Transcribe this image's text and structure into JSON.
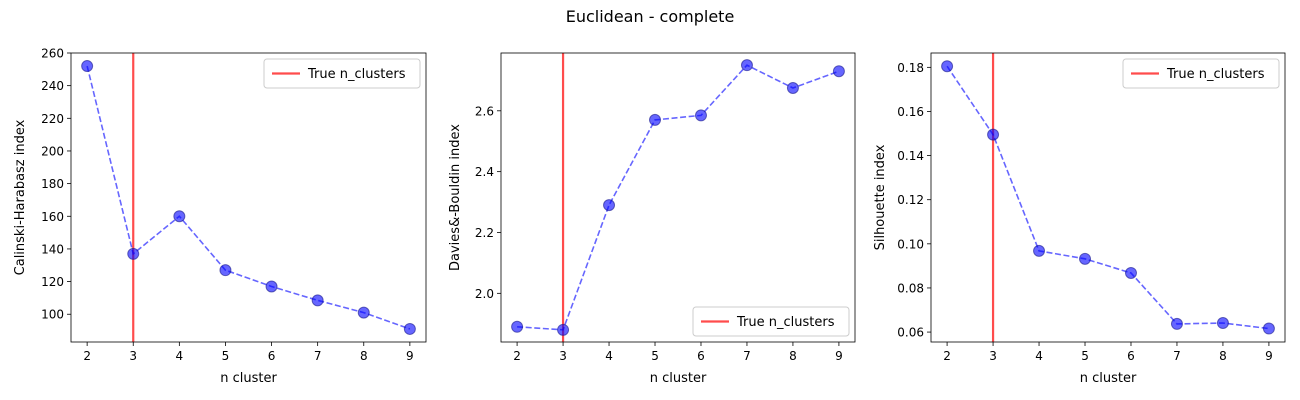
{
  "figure": {
    "title": "Euclidean - complete"
  },
  "style": {
    "series_color": "#0000ff",
    "marker_edge_color": "#1a1a8c",
    "reference_line_color": "#ff0000"
  },
  "chart_data": [
    {
      "type": "line",
      "title": "",
      "xlabel": "n cluster",
      "ylabel": "Calinski-Harabasz index",
      "x": [
        2,
        3,
        4,
        5,
        6,
        7,
        8,
        9
      ],
      "series": [
        {
          "values": [
            252,
            137,
            160,
            127,
            117,
            108.5,
            101,
            91
          ]
        }
      ],
      "xlim": [
        1.65,
        9.35
      ],
      "ylim": [
        83,
        260
      ],
      "xticks": [
        2,
        3,
        4,
        5,
        6,
        7,
        8,
        9
      ],
      "yticks": [
        100,
        120,
        140,
        160,
        180,
        200,
        220,
        240,
        260
      ],
      "ytick_labels": [
        "100",
        "120",
        "140",
        "160",
        "180",
        "200",
        "220",
        "240",
        "260"
      ],
      "reference_x": 3,
      "legend": {
        "label": "True n_clusters",
        "placement": "upper right"
      },
      "grid": false
    },
    {
      "type": "line",
      "title": "",
      "xlabel": "n cluster",
      "ylabel": "Davies&-Bouldin index",
      "x": [
        2,
        3,
        4,
        5,
        6,
        7,
        8,
        9
      ],
      "series": [
        {
          "values": [
            1.89,
            1.88,
            2.29,
            2.57,
            2.585,
            2.75,
            2.675,
            2.73
          ]
        }
      ],
      "xlim": [
        1.65,
        9.35
      ],
      "ylim": [
        1.84,
        2.79
      ],
      "xticks": [
        2,
        3,
        4,
        5,
        6,
        7,
        8,
        9
      ],
      "yticks": [
        2.0,
        2.2,
        2.4,
        2.6
      ],
      "ytick_labels": [
        "2.0",
        "2.2",
        "2.4",
        "2.6"
      ],
      "reference_x": 3,
      "legend": {
        "label": "True n_clusters",
        "placement": "lower right"
      },
      "grid": false
    },
    {
      "type": "line",
      "title": "",
      "xlabel": "n cluster",
      "ylabel": "Silhouette index",
      "x": [
        2,
        3,
        4,
        5,
        6,
        7,
        8,
        9
      ],
      "series": [
        {
          "values": [
            0.1805,
            0.1495,
            0.0968,
            0.0932,
            0.0868,
            0.0637,
            0.0641,
            0.0616
          ]
        }
      ],
      "xlim": [
        1.65,
        9.35
      ],
      "ylim": [
        0.0555,
        0.1865
      ],
      "xticks": [
        2,
        3,
        4,
        5,
        6,
        7,
        8,
        9
      ],
      "yticks": [
        0.06,
        0.08,
        0.1,
        0.12,
        0.14,
        0.16,
        0.18
      ],
      "ytick_labels": [
        "0.06",
        "0.08",
        "0.10",
        "0.12",
        "0.14",
        "0.16",
        "0.18"
      ],
      "reference_x": 3,
      "legend": {
        "label": "True n_clusters",
        "placement": "upper right"
      },
      "grid": false
    }
  ]
}
